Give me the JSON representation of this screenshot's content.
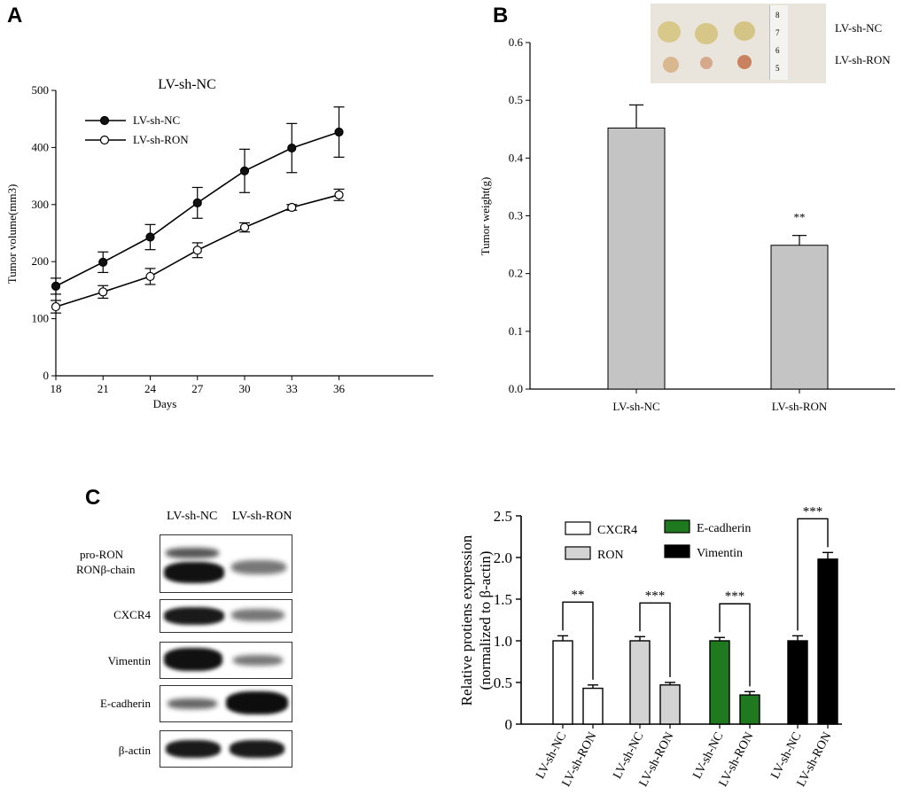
{
  "panels": {
    "a": "A",
    "b": "B",
    "c": "C"
  },
  "chart_data": [
    {
      "type": "line",
      "title": "LV-sh-NC",
      "xlabel": "Days",
      "ylabel": "Tumor volume(mm3)",
      "x": [
        18,
        21,
        24,
        27,
        30,
        33,
        36
      ],
      "xlim": [
        18,
        42
      ],
      "ylim": [
        0,
        500
      ],
      "yticks": [
        0,
        100,
        200,
        300,
        400,
        500
      ],
      "series": [
        {
          "name": "LV-sh-NC",
          "marker": "filled",
          "values": [
            157,
            199,
            243,
            303,
            359,
            399,
            427
          ],
          "errors": [
            14,
            18,
            22,
            27,
            38,
            43,
            44
          ]
        },
        {
          "name": "LV-sh-RON",
          "marker": "open",
          "values": [
            121,
            147,
            174,
            220,
            260,
            295,
            317
          ],
          "errors": [
            11,
            11,
            14,
            13,
            8,
            5,
            10
          ]
        }
      ]
    },
    {
      "type": "bar",
      "xlabel": "",
      "ylabel": "Tumor weight(g)",
      "categories": [
        "LV-sh-NC",
        "LV-sh-RON"
      ],
      "values": [
        0.452,
        0.249
      ],
      "errors": [
        0.04,
        0.017
      ],
      "ylim": [
        0,
        0.6
      ],
      "yticks": [
        "0.0",
        "0.1",
        "0.2",
        "0.3",
        "0.4",
        "0.5",
        "0.6"
      ],
      "annotations": [
        {
          "category": "LV-sh-RON",
          "text": "**"
        }
      ]
    },
    {
      "type": "bar",
      "ylabel": "Relative protiens expression",
      "ylabel2": "(normalized to β-actin)",
      "ylim": [
        0,
        2.5
      ],
      "yticks": [
        "0",
        "0.5",
        "1.0",
        "1.5",
        "2.0",
        "2.5"
      ],
      "categories": [
        "LV-sh-NC",
        "LV-sh-RON"
      ],
      "series": [
        {
          "name": "CXCR4",
          "color": "#ffffff",
          "values": [
            1.0,
            0.43
          ],
          "errors": [
            0.06,
            0.04
          ],
          "sig": "**"
        },
        {
          "name": "RON",
          "color": "#d3d3d3",
          "values": [
            1.0,
            0.47
          ],
          "errors": [
            0.05,
            0.03
          ],
          "sig": "***"
        },
        {
          "name": "E-cadherin",
          "color": "#1f7a1f",
          "values": [
            1.0,
            0.35
          ],
          "errors": [
            0.04,
            0.04
          ],
          "sig": "***"
        },
        {
          "name": "Vimentin",
          "color": "#000000",
          "values": [
            1.0,
            1.98
          ],
          "errors": [
            0.06,
            0.08
          ],
          "sig": "***"
        }
      ]
    }
  ],
  "tumor_photo": {
    "labels": [
      "LV-sh-NC",
      "LV-sh-RON"
    ],
    "ruler_numbers": [
      "5",
      "6",
      "7",
      "8"
    ]
  },
  "western_blot": {
    "lanes": [
      "LV-sh-NC",
      "LV-sh-RON"
    ],
    "rows": [
      {
        "labels": [
          "pro-RON",
          "RONβ-chain"
        ]
      },
      {
        "labels": [
          "CXCR4"
        ]
      },
      {
        "labels": [
          "Vimentin"
        ]
      },
      {
        "labels": [
          "E-cadherin"
        ]
      },
      {
        "labels": [
          "β-actin"
        ]
      }
    ]
  }
}
